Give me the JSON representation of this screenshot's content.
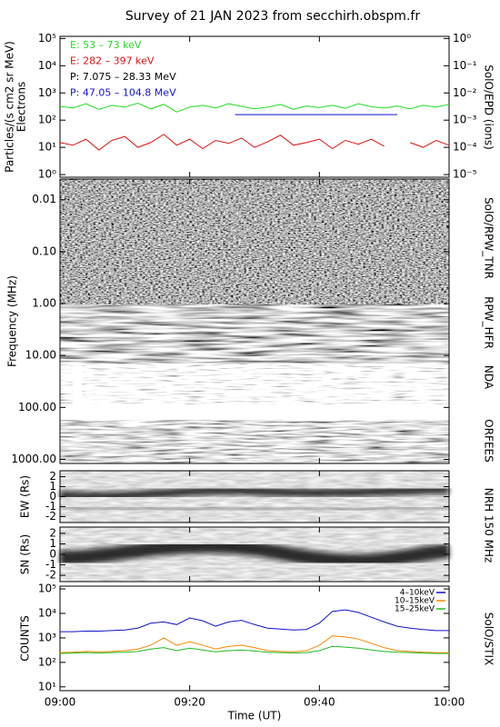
{
  "title": "Survey of 21 JAN 2023 from secchirh.obspm.fr",
  "xlabel": "Time (UT)",
  "chart_data": [
    {
      "type": "line",
      "log": true,
      "ylabel": "Particles/(s cm2 sr MeV)",
      "ylabel2": "Electrons",
      "side_label": "SolO/EPD (ions)",
      "xlim": [
        "09:00",
        "10:00"
      ],
      "ylim": [
        0.8,
        120000
      ],
      "yticks": [
        {
          "value": 1,
          "label": "10⁰"
        },
        {
          "value": 10,
          "label": "10¹"
        },
        {
          "value": 100,
          "label": "10²"
        },
        {
          "value": 1000,
          "label": "10³"
        },
        {
          "value": 10000,
          "label": "10⁴"
        },
        {
          "value": 100000,
          "label": "10⁵"
        }
      ],
      "y2lim": [
        8e-06,
        1.2
      ],
      "y2ticks": [
        {
          "value": 1e-05,
          "label": "10⁻⁵"
        },
        {
          "value": 0.0001,
          "label": "10⁻⁴"
        },
        {
          "value": 0.001,
          "label": "10⁻³"
        },
        {
          "value": 0.01,
          "label": "10⁻²"
        },
        {
          "value": 0.1,
          "label": "10⁻¹"
        },
        {
          "value": 1,
          "label": "10⁰"
        }
      ],
      "x": [
        "09:00",
        "09:02",
        "09:04",
        "09:06",
        "09:08",
        "09:10",
        "09:12",
        "09:14",
        "09:16",
        "09:18",
        "09:20",
        "09:22",
        "09:24",
        "09:26",
        "09:28",
        "09:30",
        "09:32",
        "09:34",
        "09:36",
        "09:38",
        "09:40",
        "09:42",
        "09:44",
        "09:46",
        "09:48",
        "09:50",
        "09:52",
        "09:54",
        "09:56",
        "09:58",
        "10:00"
      ],
      "series": [
        {
          "name": "E: 53 – 73 keV",
          "color": "#22dd22",
          "values": [
            320,
            280,
            400,
            250,
            350,
            300,
            420,
            260,
            380,
            200,
            300,
            350,
            280,
            400,
            320,
            260,
            300,
            380,
            250,
            330,
            290,
            350,
            270,
            400,
            310,
            280,
            330,
            260,
            350,
            300,
            380
          ]
        },
        {
          "name": "E: 282 – 397 keV",
          "color": "#dd1111",
          "values": [
            15,
            12,
            20,
            8,
            18,
            25,
            10,
            15,
            30,
            12,
            20,
            9,
            18,
            14,
            22,
            10,
            16,
            28,
            12,
            15,
            20,
            9,
            18,
            13,
            20,
            11,
            null,
            15,
            10,
            18,
            12
          ]
        },
        {
          "name": "P: 7.075 – 28.33 MeV",
          "color": "#000000",
          "x": [],
          "values": [],
          "axis": "y2"
        },
        {
          "name": "P: 47.05 – 104.8 MeV",
          "color": "#1111dd",
          "x": [
            "09:27",
            "09:52"
          ],
          "values": [
            0.0016,
            0.0016
          ],
          "axis": "y2"
        }
      ]
    },
    {
      "type": "spectrogram",
      "log": true,
      "ylabel": "Frequency (MHz)",
      "ylim": [
        1200,
        0.004
      ],
      "yticks": [
        0.01,
        {
          "value": 0.1,
          "label": "0.10"
        },
        {
          "value": 1,
          "label": "1.00"
        },
        {
          "value": 10,
          "label": "10.00"
        },
        {
          "value": 100,
          "label": "100.00"
        },
        {
          "value": 1000,
          "label": "1000.00"
        }
      ],
      "bands": [
        {
          "label": "SolO/RPW_TNR"
        },
        {
          "label": "RPW_HFR"
        },
        {
          "label": "NDA"
        },
        {
          "label": "ORFEES"
        }
      ]
    },
    {
      "type": "image",
      "ylabel": "EW (Rs)",
      "side_label": "NRH 150 MHz",
      "ylim": [
        -2.6,
        2.6
      ],
      "yticks": [
        -2,
        -1,
        0,
        1,
        2
      ]
    },
    {
      "type": "image",
      "ylabel": "SN (Rs)",
      "ylim": [
        -2.6,
        2.6
      ],
      "yticks": [
        -2,
        -1,
        0,
        1,
        2
      ]
    },
    {
      "type": "line",
      "log": true,
      "ylabel": "COUNTS",
      "side_label": "SolO/STIX",
      "legend": "upper right",
      "xlim": [
        "09:00",
        "10:00"
      ],
      "xticks": [
        "09:00",
        "09:20",
        "09:40",
        "10:00"
      ],
      "ylim": [
        7,
        130000
      ],
      "yticks": [
        {
          "value": 10,
          "label": "10¹"
        },
        {
          "value": 100,
          "label": "10²"
        },
        {
          "value": 1000,
          "label": "10³"
        },
        {
          "value": 10000,
          "label": "10⁴"
        },
        {
          "value": 100000,
          "label": "10⁵"
        }
      ],
      "x": [
        "09:00",
        "09:02",
        "09:04",
        "09:06",
        "09:08",
        "09:10",
        "09:12",
        "09:14",
        "09:16",
        "09:18",
        "09:20",
        "09:22",
        "09:24",
        "09:26",
        "09:28",
        "09:30",
        "09:32",
        "09:34",
        "09:36",
        "09:38",
        "09:40",
        "09:42",
        "09:44",
        "09:46",
        "09:48",
        "09:50",
        "09:52",
        "09:54",
        "09:56",
        "09:58",
        "10:00"
      ],
      "series": [
        {
          "name": "4–10keV",
          "color": "#1111cc",
          "values": [
            1800,
            1800,
            1900,
            1900,
            2000,
            2100,
            2500,
            4000,
            4500,
            3500,
            6500,
            5000,
            3000,
            4500,
            5200,
            3500,
            2500,
            2300,
            2100,
            2200,
            4000,
            12000,
            14000,
            11000,
            7000,
            4500,
            3000,
            2500,
            2200,
            2000,
            2000
          ]
        },
        {
          "name": "10–15keV",
          "color": "#ff8800",
          "values": [
            250,
            260,
            280,
            270,
            280,
            300,
            350,
            500,
            1000,
            500,
            700,
            500,
            350,
            450,
            500,
            400,
            300,
            280,
            270,
            300,
            500,
            1200,
            1100,
            900,
            600,
            400,
            300,
            280,
            260,
            250,
            250
          ]
        },
        {
          "name": "15–25keV",
          "color": "#22bb22",
          "values": [
            230,
            240,
            250,
            240,
            250,
            260,
            280,
            350,
            400,
            300,
            380,
            320,
            270,
            300,
            320,
            290,
            260,
            250,
            240,
            250,
            300,
            450,
            420,
            380,
            320,
            280,
            260,
            250,
            240,
            230,
            230
          ]
        }
      ]
    }
  ]
}
